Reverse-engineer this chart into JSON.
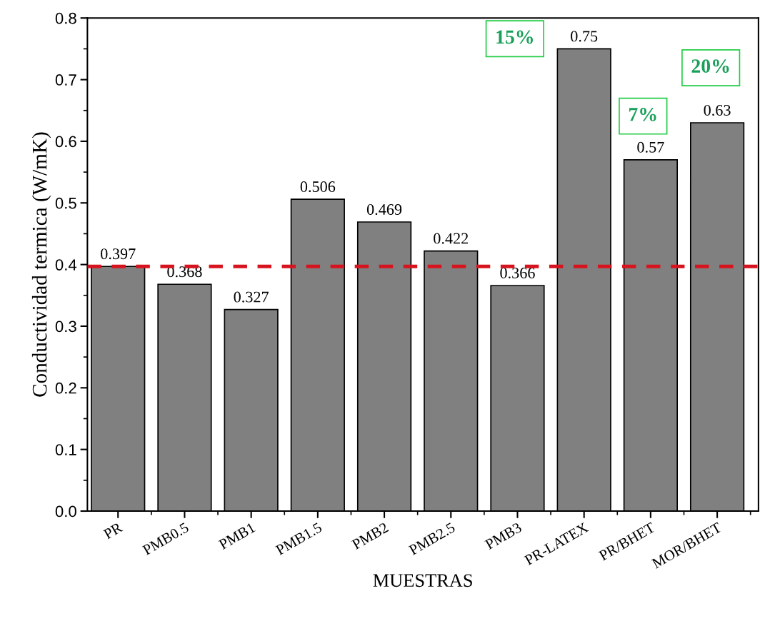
{
  "chart_data": {
    "type": "bar",
    "xlabel": "MUESTRAS",
    "ylabel": "Conductividad termica (W/mK)",
    "categories": [
      "PR",
      "PMB0.5",
      "PMB1",
      "PMB1.5",
      "PMB2",
      "PMB2.5",
      "PMB3",
      "PR-LATEX",
      "PR/BHET",
      "MOR/BHET"
    ],
    "values": [
      0.397,
      0.368,
      0.327,
      0.506,
      0.469,
      0.422,
      0.366,
      0.75,
      0.57,
      0.63
    ],
    "color": "#808080",
    "data_labels": true,
    "ylim": [
      0,
      0.8
    ],
    "yticks": [
      {
        "value": 0,
        "label": "0.0"
      },
      0.1,
      0.2,
      0.3,
      0.4,
      0.5,
      0.6,
      0.7,
      0.8
    ],
    "grid": false,
    "ref_lines": [
      {
        "axis": "y",
        "value": 0.397,
        "color": "#d7141e",
        "line_style": "dashed"
      }
    ],
    "annotations": [
      "15%",
      "7%",
      "20%"
    ]
  }
}
